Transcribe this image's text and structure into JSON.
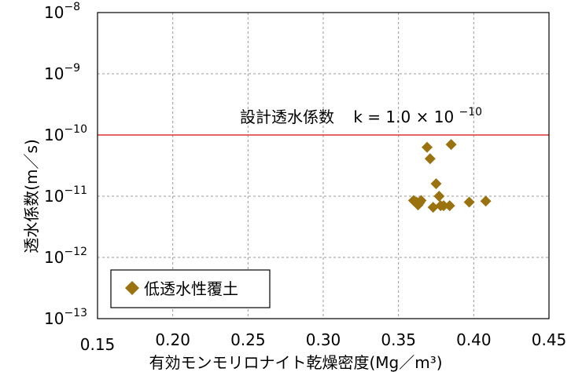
{
  "chart_data": {
    "type": "scatter",
    "xlabel": "有効モンモリロナイト乾燥密度(Mg／m³)",
    "ylabel": "透水係数(m／s)",
    "xlim": [
      0.15,
      0.45
    ],
    "ylim": [
      1e-13,
      1e-08
    ],
    "yscale": "log",
    "x_ticks": [
      "0.15",
      "0.20",
      "0.25",
      "0.30",
      "0.35",
      "0.40",
      "0.45"
    ],
    "y_ticks": [
      {
        "base": "10",
        "exp": "−8",
        "value": 1e-08
      },
      {
        "base": "10",
        "exp": "−9",
        "value": 1e-09
      },
      {
        "base": "10",
        "exp": "−10",
        "value": 1e-10
      },
      {
        "base": "10",
        "exp": "−11",
        "value": 1e-11
      },
      {
        "base": "10",
        "exp": "−12",
        "value": 1e-12
      },
      {
        "base": "10",
        "exp": "−13",
        "value": 1e-13
      }
    ],
    "grid": true,
    "legend_position": "bottom-left",
    "series": [
      {
        "name": "低透水性覆土",
        "color": "#9a7310",
        "marker": "diamond",
        "points": [
          {
            "x": 0.36,
            "y": 8.5e-12
          },
          {
            "x": 0.362,
            "y": 8e-12
          },
          {
            "x": 0.363,
            "y": 7.2e-12
          },
          {
            "x": 0.364,
            "y": 7.8e-12
          },
          {
            "x": 0.365,
            "y": 8.5e-12
          },
          {
            "x": 0.369,
            "y": 6.3e-11
          },
          {
            "x": 0.371,
            "y": 4.1e-11
          },
          {
            "x": 0.373,
            "y": 6.6e-12
          },
          {
            "x": 0.375,
            "y": 1.6e-11
          },
          {
            "x": 0.377,
            "y": 1e-11
          },
          {
            "x": 0.378,
            "y": 7e-12
          },
          {
            "x": 0.38,
            "y": 7e-12
          },
          {
            "x": 0.384,
            "y": 7e-12
          },
          {
            "x": 0.385,
            "y": 7e-11
          },
          {
            "x": 0.397,
            "y": 8e-12
          },
          {
            "x": 0.408,
            "y": 8.3e-12
          }
        ]
      }
    ],
    "reference_line": {
      "y": 1e-10,
      "color": "#e03030",
      "label_main": "設計透水係数",
      "label_eq": "k = 1.0",
      "label_times": "×",
      "label_base": "10",
      "label_exp": "−10"
    }
  }
}
